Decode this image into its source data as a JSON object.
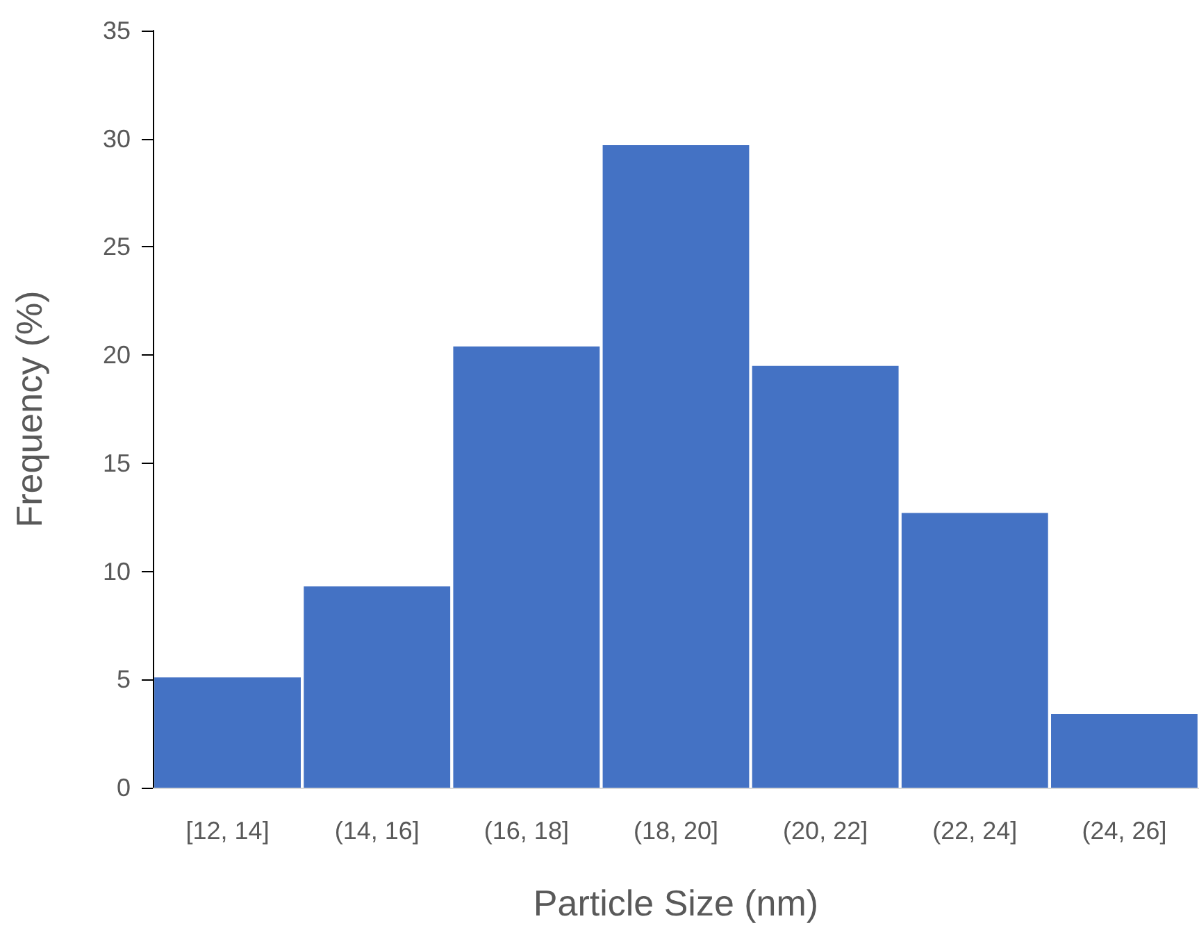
{
  "chart_data": {
    "type": "bar",
    "xlabel": "Particle Size (nm)",
    "ylabel": "Frequency (%)",
    "categories": [
      "[12, 14]",
      "(14, 16]",
      "(16, 18]",
      "(18, 20]",
      "(20, 22]",
      "(22, 24]",
      "(24, 26]"
    ],
    "values": [
      5.1,
      9.3,
      20.4,
      29.7,
      19.5,
      12.7,
      3.4
    ],
    "color": "#4472c4",
    "ylim": [
      0,
      35
    ],
    "yticks": [
      0,
      5,
      10,
      15,
      20,
      25,
      30,
      35
    ],
    "grid": false
  }
}
